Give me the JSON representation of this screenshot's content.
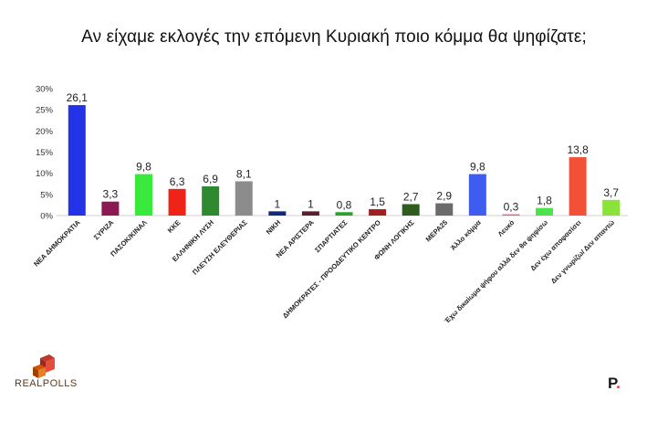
{
  "title": "Αν είχαμε εκλογές την επόμενη Κυριακή ποιο κόμμα θα ψηφίζατε;",
  "chart_data": {
    "type": "bar",
    "title": "Αν είχαμε εκλογές την επόμενη Κυριακή ποιο κόμμα θα ψηφίζατε;",
    "categories": [
      "ΝΕΑ ΔΗΜΟΚΡΑΤΙΑ",
      "ΣΥΡΙΖΑ",
      "ΠΑΣΟΚ/ΚΙΝΑΛ",
      "ΚΚΕ",
      "ΕΛΛΗΝΙΚΗ ΛΥΣΗ",
      "ΠΛΕΥΣΗ ΕΛΕΥΘΕΡΙΑΣ",
      "ΝΙΚΗ",
      "ΝΕΑ ΑΡΙΣΤΕΡΑ",
      "ΣΠΑΡΤΙΑΤΕΣ",
      "ΔΗΜΟΚΡΑΤΕΣ - ΠΡΟΟΔΕΥΤΙΚΟ ΚΕΝΤΡΟ",
      "ΦΩΝΗ ΛΟΓΙΚΗΣ",
      "ΜΕΡΑ25",
      "Άλλο κόμμα",
      "Λευκό",
      "Έχω δικαίωμα ψήφου αλλά δεν θα ψηφίσω",
      "Δεν έχω αποφασίσει",
      "Δεν γνωρίζω/ Δεν απαντώ"
    ],
    "values": [
      26.1,
      3.3,
      9.8,
      6.3,
      6.9,
      8.1,
      1,
      1,
      0.8,
      1.5,
      2.7,
      2.9,
      9.8,
      0.3,
      1.8,
      13.8,
      3.7
    ],
    "value_labels": [
      "26,1",
      "3,3",
      "9,8",
      "6,3",
      "6,9",
      "8,1",
      "1",
      "1",
      "0,8",
      "1,5",
      "2,7",
      "2,9",
      "9,8",
      "0,3",
      "1,8",
      "13,8",
      "3,7"
    ],
    "colors": [
      "#2433e6",
      "#8b1a52",
      "#39ea3c",
      "#ef2318",
      "#2f8a2f",
      "#8c8c8c",
      "#15287a",
      "#5c1d2c",
      "#27a327",
      "#a31f1f",
      "#2d5c1e",
      "#6b6b6b",
      "#3e5df0",
      "#f05a8a",
      "#4ee34e",
      "#f25138",
      "#89e33a"
    ],
    "ylim": [
      0,
      30
    ],
    "yticks": [
      0,
      5,
      10,
      15,
      20,
      25,
      30
    ],
    "ytick_labels": [
      "0%",
      "5%",
      "10%",
      "15%",
      "20%",
      "25%",
      "30%"
    ],
    "xlabel": "",
    "ylabel": "",
    "grid": false
  },
  "branding": {
    "left_logo": "REALPOLLS",
    "right_logo_letter": "P",
    "right_logo_dot": "."
  }
}
